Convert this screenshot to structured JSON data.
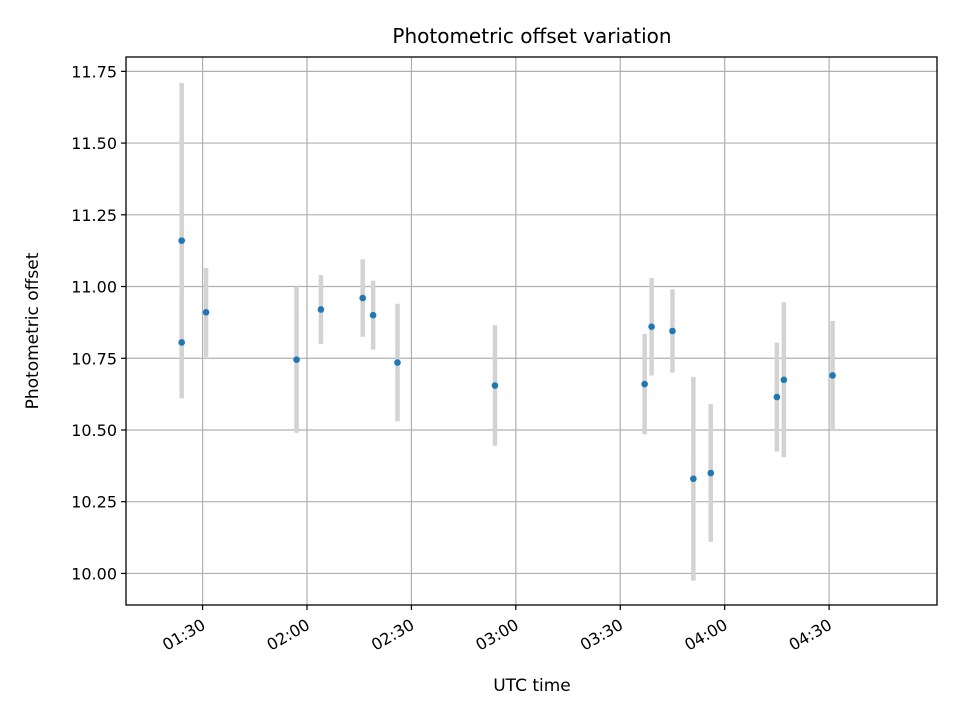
{
  "chart_data": {
    "type": "scatter",
    "title": "Photometric offset variation",
    "xlabel": "UTC time",
    "ylabel": "Photometric offset",
    "x_tick_labels": [
      "01:30",
      "02:00",
      "02:30",
      "03:00",
      "03:30",
      "04:00",
      "04:30"
    ],
    "x_tick_minutes": [
      90,
      120,
      150,
      180,
      210,
      240,
      270
    ],
    "y_ticks": [
      10.0,
      10.25,
      10.5,
      10.75,
      11.0,
      11.25,
      11.5,
      11.75
    ],
    "y_tick_labels": [
      "10.00",
      "10.25",
      "10.50",
      "10.75",
      "11.00",
      "11.25",
      "11.50",
      "11.75"
    ],
    "xlim": [
      "01:08",
      "05:01"
    ],
    "ylim": [
      9.89,
      11.8
    ],
    "grid": true,
    "marker_color": "#1f77b4",
    "errorbar_color": "#d3d3d3",
    "points": [
      {
        "x": "01:24",
        "y": 11.16,
        "err": 0.55
      },
      {
        "x": "01:24",
        "y": 10.805,
        "err": 0.17
      },
      {
        "x": "01:31",
        "y": 10.91,
        "err": 0.155
      },
      {
        "x": "01:57",
        "y": 10.745,
        "err": 0.255
      },
      {
        "x": "02:04",
        "y": 10.92,
        "err": 0.12
      },
      {
        "x": "02:16",
        "y": 10.96,
        "err": 0.135
      },
      {
        "x": "02:19",
        "y": 10.9,
        "err": 0.12
      },
      {
        "x": "02:26",
        "y": 10.735,
        "err": 0.205
      },
      {
        "x": "02:54",
        "y": 10.655,
        "err": 0.21
      },
      {
        "x": "03:37",
        "y": 10.66,
        "err": 0.175
      },
      {
        "x": "03:39",
        "y": 10.86,
        "err": 0.17
      },
      {
        "x": "03:45",
        "y": 10.845,
        "err": 0.145
      },
      {
        "x": "03:51",
        "y": 10.33,
        "err": 0.355
      },
      {
        "x": "03:56",
        "y": 10.35,
        "err": 0.24
      },
      {
        "x": "04:15",
        "y": 10.615,
        "err": 0.19
      },
      {
        "x": "04:17",
        "y": 10.675,
        "err": 0.27
      },
      {
        "x": "04:31",
        "y": 10.69,
        "err": 0.19
      }
    ]
  }
}
